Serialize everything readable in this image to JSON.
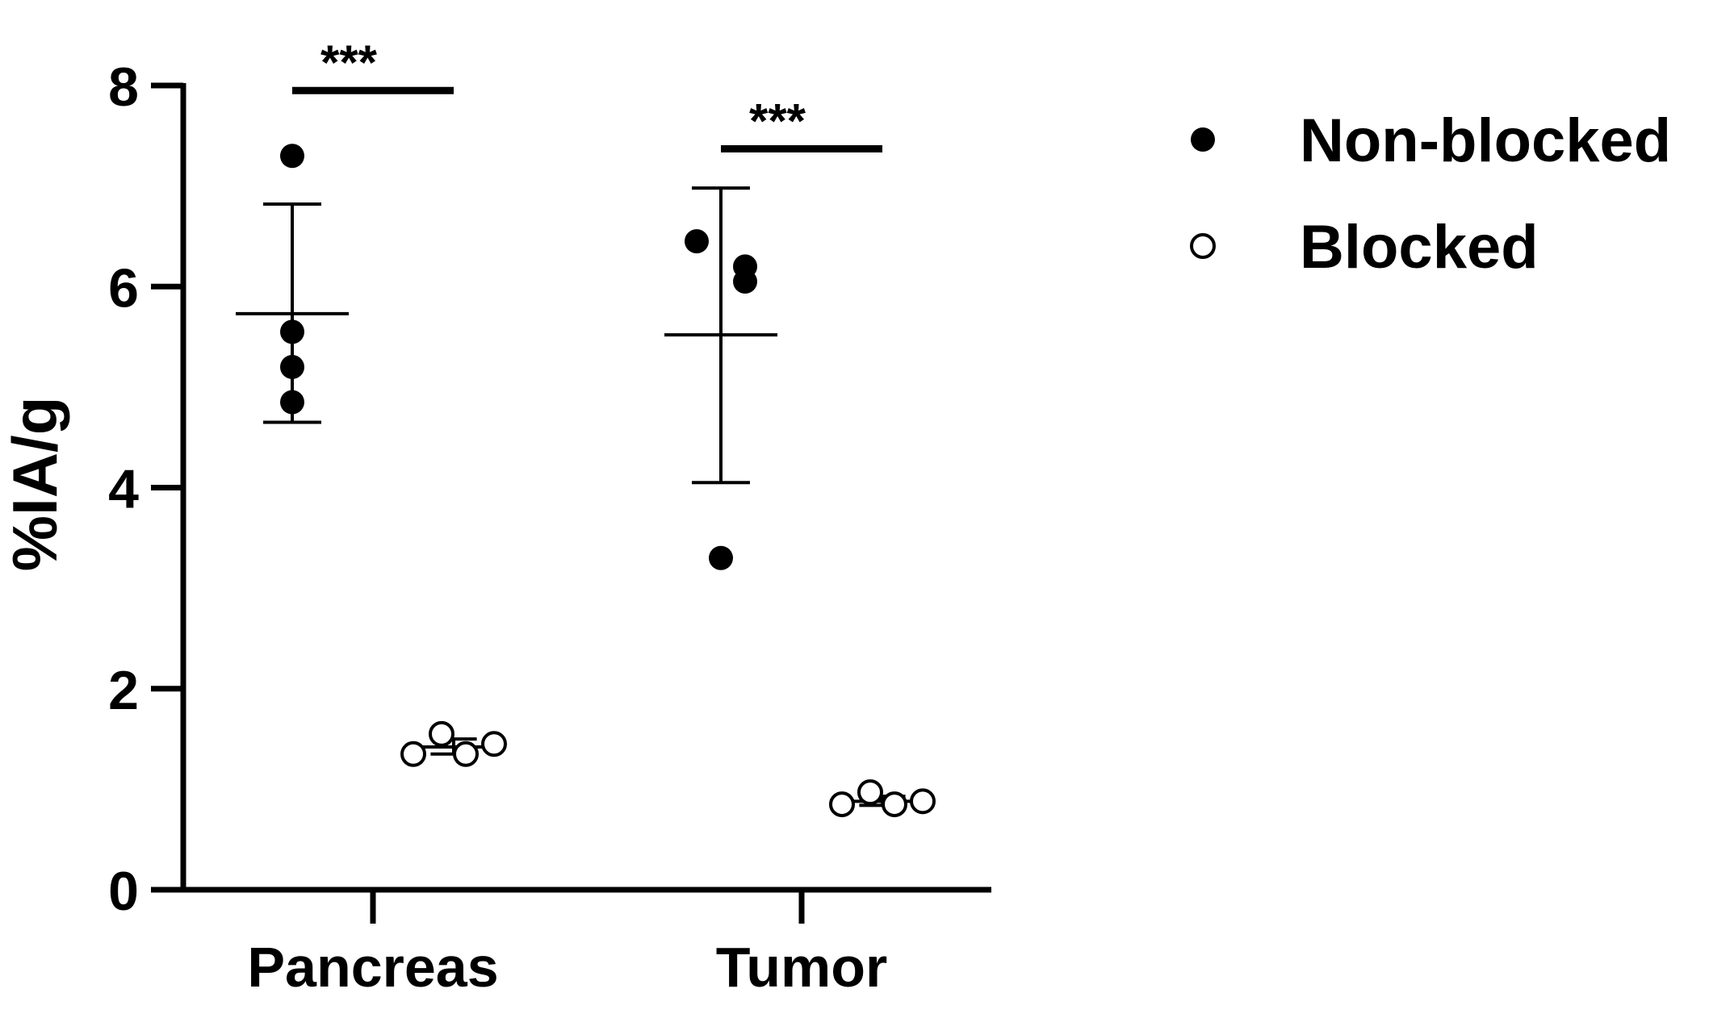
{
  "chart_data": {
    "type": "scatter",
    "title": "",
    "xlabel": "",
    "ylabel": "%IA/g",
    "categories": [
      "Pancreas",
      "Tumor"
    ],
    "ylim": [
      0,
      8
    ],
    "yticks": [
      0,
      2,
      4,
      6,
      8
    ],
    "grid": false,
    "legend_position": "top-right",
    "colors": {
      "axis": "#000000",
      "marker": "#000000",
      "background": "#ffffff"
    },
    "series": [
      {
        "name": "Non-blocked",
        "marker": "filled-circle",
        "points": [
          {
            "category": "Pancreas",
            "values": [
              7.3,
              5.55,
              5.2,
              4.85
            ]
          },
          {
            "category": "Tumor",
            "values": [
              6.45,
              6.2,
              6.05,
              3.3
            ]
          }
        ],
        "summary": [
          {
            "category": "Pancreas",
            "mean": 5.73,
            "upper": 6.82,
            "lower": 4.65
          },
          {
            "category": "Tumor",
            "mean": 5.52,
            "upper": 6.98,
            "lower": 4.05
          }
        ]
      },
      {
        "name": "Blocked",
        "marker": "open-circle",
        "points": [
          {
            "category": "Pancreas",
            "values": [
              1.35,
              1.55,
              1.35,
              1.45
            ]
          },
          {
            "category": "Tumor",
            "values": [
              0.85,
              0.97,
              0.85,
              0.88
            ]
          }
        ],
        "summary": [
          {
            "category": "Pancreas",
            "mean": 1.42,
            "upper": 1.5,
            "lower": 1.35
          },
          {
            "category": "Tumor",
            "mean": 0.88,
            "upper": 0.93,
            "lower": 0.84
          }
        ]
      }
    ],
    "annotations": [
      {
        "category": "Pancreas",
        "text": "***",
        "bar_y": 7.95
      },
      {
        "category": "Tumor",
        "text": "***",
        "bar_y": 7.37
      }
    ]
  }
}
